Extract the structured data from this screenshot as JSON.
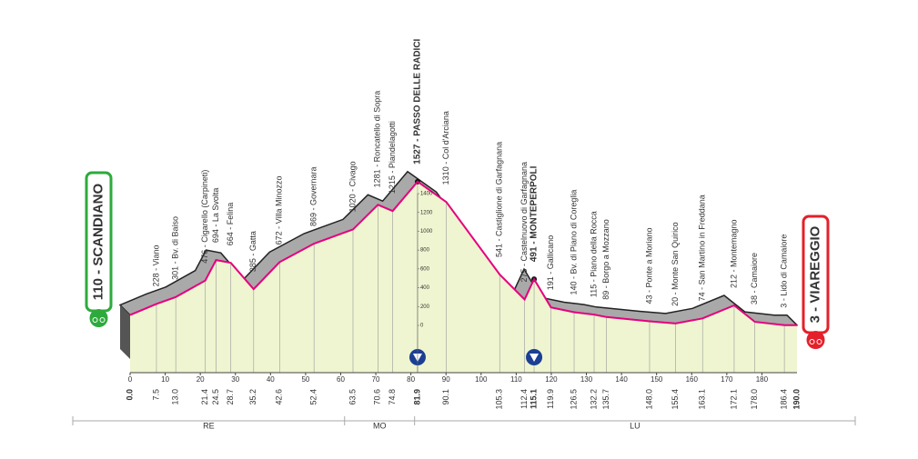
{
  "chart_data": {
    "type": "area",
    "start": {
      "km": {
        "value": 0,
        "label": "0.0"
      },
      "elevation": 110,
      "label": "110 - SCANDIANO",
      "color": "#2eaa3c"
    },
    "finish": {
      "km": {
        "value": 190,
        "label": "190.0"
      },
      "elevation": 3,
      "label": "3 - VIAREGGIO",
      "color": "#e4202a"
    },
    "waypoints": [
      {
        "km": 7.5,
        "elevation": 228,
        "label": "228 - Viano"
      },
      {
        "km": {
          "value": 13,
          "label": "13.0"
        },
        "elevation": 301,
        "label": "301 - Bv. di Baiso"
      },
      {
        "km": 21.4,
        "elevation": 476,
        "label": "476 - Cigarello (Carpineti)"
      },
      {
        "km": 24.5,
        "elevation": 694,
        "label": "694 - La Svolta"
      },
      {
        "km": 28.7,
        "elevation": 664,
        "label": "664 - Felina"
      },
      {
        "km": 35.2,
        "elevation": 385,
        "label": "385 - Gatta"
      },
      {
        "km": 42.6,
        "elevation": 672,
        "label": "672 - Villa Minozzo"
      },
      {
        "km": 52.4,
        "elevation": 869,
        "label": "869 - Governara"
      },
      {
        "km": 63.5,
        "elevation": 1020,
        "label": "1020 - Civago"
      },
      {
        "km": 70.6,
        "elevation": 1281,
        "label": "1281 - Roncatello di Sopra"
      },
      {
        "km": 74.8,
        "elevation": 1215,
        "label": "1215 - Piandelagotti"
      },
      {
        "km": 81.9,
        "elevation": 1527,
        "label": "1527 - PASSO DELLE RADICI",
        "bold": true,
        "summit_marker": true
      },
      {
        "km": 90.1,
        "elevation": 1310,
        "label": "1310 - Col d'Arciana"
      },
      {
        "km": 105.3,
        "elevation": 541,
        "label": "541 - Castiglione di Garfagnana"
      },
      {
        "km": 112.4,
        "elevation": 275,
        "label": "275 - Castelnuovo di Garfagnana"
      },
      {
        "km": 115.1,
        "elevation": 491,
        "label": "491 - MONTEPERPOLI",
        "bold": true,
        "summit_marker": true
      },
      {
        "km": 119.9,
        "elevation": 191,
        "label": "191 - Gallicano"
      },
      {
        "km": 126.5,
        "elevation": 140,
        "label": "140 - Bv. di Piano di Coreglia"
      },
      {
        "km": 132.2,
        "elevation": 115,
        "label": "115 - Piano della Rocca"
      },
      {
        "km": 135.7,
        "elevation": 89,
        "label": "89 - Borgo a Mozzano"
      },
      {
        "km": {
          "value": 148,
          "label": "148.0"
        },
        "elevation": 43,
        "label": "43 - Ponte a Moriano"
      },
      {
        "km": 155.4,
        "elevation": 20,
        "label": "20 - Monte San Quirico"
      },
      {
        "km": 163.1,
        "elevation": 74,
        "label": "74 - San Martino in Freddana"
      },
      {
        "km": 172.1,
        "elevation": 212,
        "label": "212 - Montemagno"
      },
      {
        "km": {
          "value": 178,
          "label": "178.0"
        },
        "elevation": 38,
        "label": "38 - Camaiore"
      },
      {
        "km": 186.4,
        "elevation": 3,
        "label": "3 - Lido di Camaiore"
      }
    ],
    "xlim": [
      0,
      190
    ],
    "xticks": [
      0,
      10,
      20,
      30,
      40,
      50,
      60,
      70,
      80,
      90,
      100,
      110,
      120,
      130,
      140,
      150,
      160,
      170,
      180
    ],
    "ylim": [
      0,
      1400
    ],
    "yticks": [
      0,
      200,
      400,
      600,
      800,
      1000,
      1200,
      1400
    ],
    "line_color": "#e6007e",
    "fill_color": "#eef5d0",
    "ridge_color": "#a9a9a9",
    "regions": [
      {
        "label": "RE",
        "from": 0,
        "to": 66
      },
      {
        "label": "MO",
        "from": 66,
        "to": 83
      },
      {
        "label": "LU",
        "from": 83,
        "to": 190
      }
    ]
  }
}
